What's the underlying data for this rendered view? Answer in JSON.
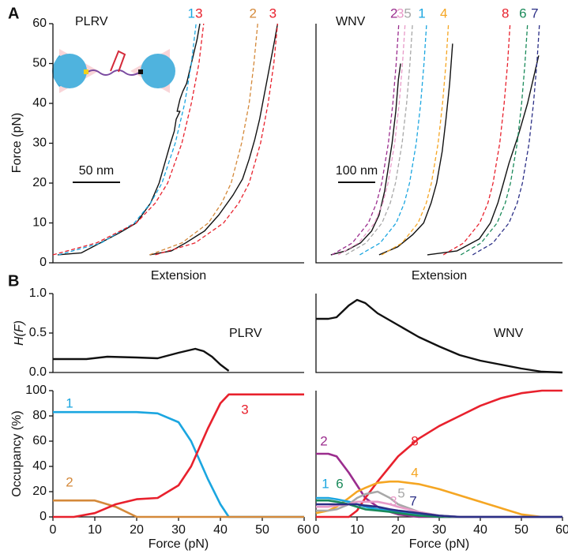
{
  "panel_labels": [
    "A",
    "B"
  ],
  "chart_data": [
    {
      "type": "line",
      "title": "PLRV",
      "xlabel": "Extension",
      "ylabel": "Force (pN)",
      "xlim": [
        0,
        265
      ],
      "ylim": [
        0,
        60
      ],
      "yticks": [
        0,
        10,
        20,
        30,
        40,
        50,
        60
      ],
      "scale_bar": {
        "label": "50 nm",
        "length": 50
      },
      "series": [
        {
          "name": "1",
          "color": "#1ba6e0",
          "dashed": true,
          "x": [
            6,
            51,
            86,
            103,
            115,
            129,
            139,
            146,
            151
          ],
          "y": [
            2,
            5,
            10,
            15,
            20,
            30,
            40,
            50,
            60
          ]
        },
        {
          "name": "3",
          "color": "#e8212d",
          "dashed": true,
          "x": [
            0,
            46,
            88,
            108,
            121,
            136,
            146,
            154,
            159
          ],
          "y": [
            2,
            5,
            10,
            15,
            20,
            30,
            40,
            50,
            60
          ]
        },
        {
          "name": "2",
          "color": "#d4893a",
          "dashed": true,
          "x": [
            102,
            136,
            164,
            178,
            188,
            199,
            207,
            212,
            216
          ],
          "y": [
            2,
            5,
            10,
            15,
            20,
            30,
            40,
            50,
            60
          ]
        },
        {
          "name": "3",
          "color": "#e8212d",
          "dashed": true,
          "x": [
            108,
            150,
            180,
            196,
            207,
            219,
            227,
            233,
            237
          ],
          "y": [
            2,
            5,
            10,
            15,
            20,
            30,
            40,
            50,
            60
          ]
        }
      ],
      "traces": [
        {
          "color": "#111111",
          "x": [
            5,
            30,
            50,
            70,
            88,
            103,
            112,
            118,
            124,
            128,
            130,
            134,
            131,
            134,
            137,
            141,
            144,
            148,
            152,
            155
          ],
          "y": [
            2,
            2.5,
            5,
            7.5,
            10,
            15,
            20,
            25,
            30,
            33,
            36,
            38,
            38,
            41,
            43,
            45,
            48,
            52,
            56,
            60
          ]
        },
        {
          "color": "#111111",
          "x": [
            102,
            125,
            140,
            160,
            175,
            190,
            200,
            207,
            213,
            218,
            222,
            226,
            230,
            234,
            237
          ],
          "y": [
            2,
            3,
            5,
            8,
            12,
            17,
            21,
            26,
            31,
            36,
            41,
            46,
            51,
            56,
            60
          ]
        }
      ]
    },
    {
      "type": "line",
      "title": "WNV",
      "xlabel": "Extension",
      "xlim": [
        0,
        664
      ],
      "ylim": [
        0,
        60
      ],
      "scale_bar": {
        "label": "100 nm",
        "length": 100
      },
      "series": [
        {
          "name": "2",
          "color": "#9b2d8e",
          "dashed": true,
          "x": [
            43,
            98,
            141,
            163,
            177,
            195,
            207,
            216,
            223
          ],
          "y": [
            2,
            5,
            10,
            15,
            20,
            30,
            40,
            50,
            60
          ]
        },
        {
          "name": "3",
          "color": "#e89ac8",
          "dashed": true,
          "x": [
            60,
            115,
            158,
            180,
            194,
            212,
            224,
            233,
            240
          ],
          "y": [
            2,
            5,
            10,
            15,
            20,
            30,
            40,
            50,
            60
          ]
        },
        {
          "name": "5",
          "color": "#a8a8a8",
          "dashed": true,
          "x": [
            80,
            135,
            178,
            200,
            214,
            232,
            244,
            253,
            260
          ],
          "y": [
            2,
            5,
            10,
            15,
            20,
            30,
            40,
            50,
            60
          ]
        },
        {
          "name": "1",
          "color": "#1ba6e0",
          "dashed": true,
          "x": [
            118,
            173,
            216,
            238,
            252,
            270,
            282,
            291,
            298
          ],
          "y": [
            2,
            5,
            10,
            15,
            20,
            30,
            40,
            50,
            60
          ]
        },
        {
          "name": "4",
          "color": "#f5a623",
          "dashed": true,
          "x": [
            177,
            232,
            275,
            297,
            311,
            329,
            341,
            350,
            357
          ],
          "y": [
            2,
            5,
            10,
            15,
            20,
            30,
            40,
            50,
            60
          ]
        },
        {
          "name": "8",
          "color": "#e8212d",
          "dashed": true,
          "x": [
            343,
            398,
            441,
            463,
            477,
            495,
            507,
            516,
            523
          ],
          "y": [
            2,
            5,
            10,
            15,
            20,
            30,
            40,
            50,
            60
          ]
        },
        {
          "name": "6",
          "color": "#1a8a5a",
          "dashed": true,
          "x": [
            390,
            445,
            488,
            510,
            524,
            542,
            554,
            563,
            570
          ],
          "y": [
            2,
            5,
            10,
            15,
            20,
            30,
            40,
            50,
            60
          ]
        },
        {
          "name": "7",
          "color": "#2b2f86",
          "dashed": true,
          "x": [
            422,
            477,
            520,
            542,
            556,
            574,
            586,
            595,
            602
          ],
          "y": [
            2,
            5,
            10,
            15,
            20,
            30,
            40,
            50,
            60
          ]
        }
      ],
      "traces": [
        {
          "color": "#111111",
          "x": [
            40,
            80,
            120,
            150,
            170,
            185,
            195,
            205,
            215,
            222,
            228
          ],
          "y": [
            2,
            3,
            5,
            8,
            12,
            18,
            24,
            30,
            38,
            46,
            50
          ]
        },
        {
          "color": "#111111",
          "x": [
            170,
            220,
            260,
            290,
            310,
            325,
            340,
            350,
            360,
            368
          ],
          "y": [
            2,
            4,
            7,
            10,
            15,
            20,
            28,
            36,
            45,
            55
          ]
        },
        {
          "color": "#111111",
          "x": [
            300,
            380,
            440,
            470,
            490,
            505,
            520,
            545,
            570,
            600
          ],
          "y": [
            2,
            3,
            6,
            10,
            15,
            20,
            25,
            32,
            40,
            52
          ]
        }
      ]
    },
    {
      "type": "line",
      "title": "PLRV",
      "ylabel": "H(F)",
      "xlim": [
        0,
        60
      ],
      "ylim": [
        0,
        1
      ],
      "yticks": [
        {
          "value": 0,
          "label": "0.0"
        },
        {
          "value": 0.5,
          "label": "0.5"
        },
        {
          "value": 1,
          "label": "1.0"
        }
      ],
      "x": [
        0,
        4,
        8,
        13,
        20,
        25,
        30,
        34,
        36,
        38,
        40,
        42
      ],
      "series": [
        {
          "color": "#111111",
          "values": [
            0.17,
            0.17,
            0.17,
            0.2,
            0.19,
            0.18,
            0.25,
            0.3,
            0.27,
            0.2,
            0.1,
            0.02
          ]
        }
      ]
    },
    {
      "type": "line",
      "title": "WNV",
      "xlim": [
        0,
        60
      ],
      "ylim": [
        0,
        1
      ],
      "x": [
        0,
        3,
        5,
        8,
        10,
        12,
        15,
        20,
        25,
        30,
        35,
        40,
        45,
        50,
        55,
        60
      ],
      "series": [
        {
          "color": "#111111",
          "values": [
            0.68,
            0.68,
            0.7,
            0.85,
            0.92,
            0.88,
            0.75,
            0.6,
            0.45,
            0.33,
            0.22,
            0.15,
            0.1,
            0.05,
            0.01,
            0
          ]
        }
      ]
    },
    {
      "type": "line",
      "ylabel": "Occupancy (%)",
      "xlabel": "Force (pN)",
      "xlim": [
        0,
        60
      ],
      "ylim": [
        0,
        100
      ],
      "yticks": [
        0,
        20,
        40,
        60,
        80,
        100
      ],
      "xticks": [
        0,
        10,
        20,
        30,
        40,
        50,
        60
      ],
      "x": [
        0,
        5,
        10,
        15,
        20,
        25,
        30,
        33,
        35,
        37,
        40,
        42,
        45,
        50,
        60
      ],
      "series": [
        {
          "name": "1",
          "color": "#1ba6e0",
          "values": [
            83,
            83,
            83,
            83,
            83,
            82,
            75,
            60,
            45,
            30,
            10,
            0,
            0,
            0,
            0
          ]
        },
        {
          "name": "2",
          "color": "#d4893a",
          "values": [
            13,
            13,
            13,
            8,
            0,
            0,
            0,
            0,
            0,
            0,
            0,
            0,
            0,
            0,
            0
          ]
        },
        {
          "name": "3",
          "color": "#e8212d",
          "values": [
            0,
            0,
            3,
            10,
            14,
            15,
            25,
            40,
            55,
            70,
            90,
            97,
            97,
            97,
            97
          ]
        }
      ]
    },
    {
      "type": "line",
      "xlabel": "Force (pN)",
      "xlim": [
        0,
        60
      ],
      "ylim": [
        0,
        100
      ],
      "xticks": [
        0,
        10,
        20,
        30,
        40,
        50,
        60
      ],
      "x": [
        0,
        3,
        5,
        8,
        10,
        12,
        15,
        18,
        20,
        25,
        30,
        35,
        40,
        45,
        50,
        55,
        60
      ],
      "series": [
        {
          "name": "2",
          "color": "#9b2d8e",
          "values": [
            50,
            50,
            48,
            35,
            25,
            15,
            8,
            4,
            2,
            0,
            0,
            0,
            0,
            0,
            0,
            0,
            0
          ]
        },
        {
          "name": "8",
          "color": "#e8212d",
          "values": [
            0,
            0,
            0,
            0,
            5,
            15,
            28,
            40,
            48,
            62,
            72,
            80,
            88,
            94,
            98,
            100,
            100
          ]
        },
        {
          "name": "4",
          "color": "#f5a623",
          "values": [
            3,
            5,
            8,
            15,
            20,
            23,
            27,
            28,
            28,
            26,
            22,
            17,
            12,
            7,
            2,
            0,
            0
          ]
        },
        {
          "name": "1",
          "color": "#1ba6e0",
          "values": [
            15,
            15,
            14,
            12,
            10,
            8,
            6,
            5,
            4,
            2,
            1,
            0,
            0,
            0,
            0,
            0,
            0
          ]
        },
        {
          "name": "6",
          "color": "#1a8a5a",
          "values": [
            13,
            13,
            12,
            10,
            8,
            6,
            5,
            4,
            3,
            1,
            0,
            0,
            0,
            0,
            0,
            0,
            0
          ]
        },
        {
          "name": "5",
          "color": "#a8a8a8",
          "values": [
            5,
            5,
            6,
            10,
            15,
            18,
            20,
            15,
            10,
            4,
            1,
            0,
            0,
            0,
            0,
            0,
            0
          ]
        },
        {
          "name": "3",
          "color": "#e89ac8",
          "values": [
            8,
            8,
            9,
            10,
            12,
            12,
            12,
            10,
            8,
            4,
            1,
            0,
            0,
            0,
            0,
            0,
            0
          ]
        },
        {
          "name": "7",
          "color": "#2b2f86",
          "values": [
            10,
            10,
            10,
            10,
            10,
            9,
            8,
            6,
            5,
            3,
            1,
            0,
            0,
            0,
            0,
            0,
            0
          ]
        }
      ]
    }
  ]
}
